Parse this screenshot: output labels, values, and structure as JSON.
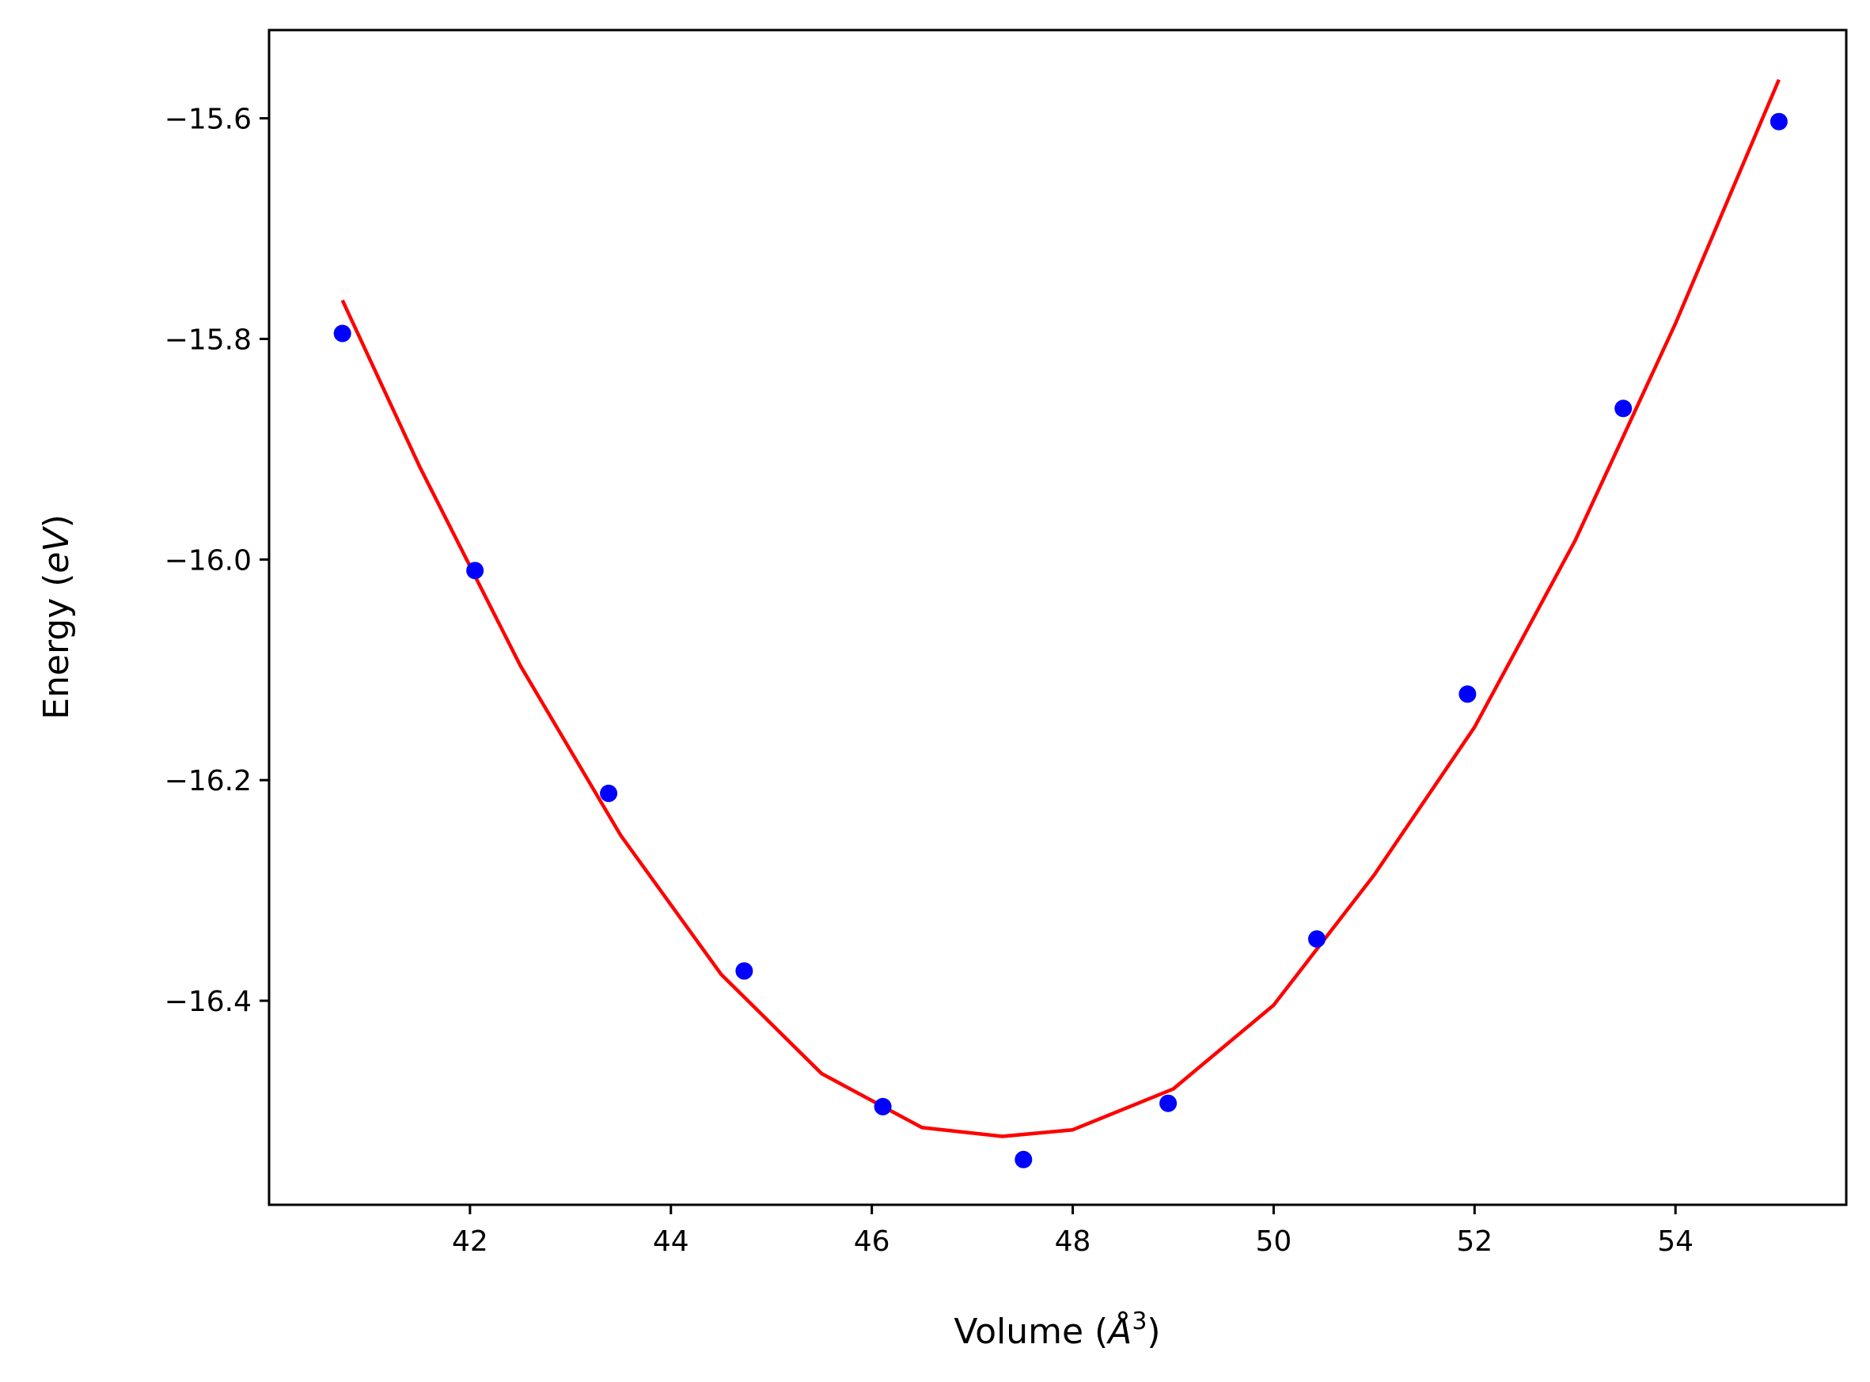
{
  "chart_data": {
    "type": "scatter",
    "xlabel_parts": [
      "Volume (",
      "Å",
      "3",
      ")"
    ],
    "ylabel_parts": [
      "Energy (",
      "eV",
      ")"
    ],
    "xlim": [
      40.0,
      55.7
    ],
    "ylim": [
      -16.585,
      -15.52
    ],
    "xticks": [
      42,
      44,
      46,
      48,
      50,
      52,
      54
    ],
    "yticks": [
      -15.6,
      -15.8,
      -16.0,
      -16.2,
      -16.4
    ],
    "ytick_labels": [
      "−15.6",
      "−15.8",
      "−16.0",
      "−16.2",
      "−16.4"
    ],
    "grid": false,
    "series": [
      {
        "kind": "points",
        "color": "#0000ff",
        "x": [
          40.73,
          42.05,
          43.38,
          44.73,
          46.11,
          47.51,
          48.95,
          50.43,
          51.93,
          53.48,
          55.03
        ],
        "y": [
          -15.795,
          -16.01,
          -16.212,
          -16.373,
          -16.496,
          -16.544,
          -16.493,
          -16.344,
          -16.122,
          -15.863,
          -15.603
        ]
      },
      {
        "kind": "fit-curve",
        "color": "#ff0000",
        "x": [
          40.73,
          41.5,
          42.5,
          43.5,
          44.5,
          45.5,
          46.5,
          47.3,
          48.0,
          49.0,
          50.0,
          51.0,
          52.0,
          53.0,
          54.0,
          55.03
        ],
        "y": [
          -15.765,
          -15.916,
          -16.096,
          -16.25,
          -16.376,
          -16.466,
          -16.515,
          -16.523,
          -16.517,
          -16.48,
          -16.404,
          -16.286,
          -16.152,
          -15.983,
          -15.786,
          -15.565
        ]
      }
    ]
  }
}
